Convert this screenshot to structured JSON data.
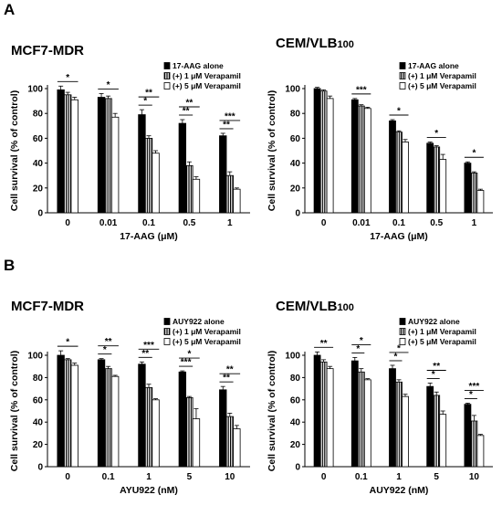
{
  "panels": [
    {
      "label": "A"
    },
    {
      "label": "B"
    }
  ],
  "colors": {
    "series": [
      "#000000",
      "hatched",
      "#ffffff"
    ]
  },
  "chart_data": [
    {
      "type": "bar",
      "title": "MCF7-MDR",
      "xlabel": "17-AAG (μM)",
      "ylabel": "Cell survival (% of control)",
      "ylim": [
        0,
        100
      ],
      "yticks": [
        "0",
        "20",
        "40",
        "60",
        "80",
        "100"
      ],
      "categories": [
        "0",
        "0.01",
        "0.1",
        "0.5",
        "1"
      ],
      "legend_position": "top-right",
      "series": [
        {
          "name": "17-AAG alone",
          "values": [
            99,
            93,
            79,
            72,
            62
          ],
          "errors": [
            3,
            3,
            4,
            3,
            2
          ]
        },
        {
          "name": "(+) 1 μM Verapamil",
          "values": [
            95,
            92,
            60,
            38,
            30
          ],
          "errors": [
            2,
            2,
            2,
            3,
            3
          ]
        },
        {
          "name": "(+) 5 μM Verapamil",
          "values": [
            91,
            77,
            48,
            27,
            19
          ],
          "errors": [
            2,
            3,
            2,
            2,
            1
          ]
        }
      ],
      "significance": [
        {
          "cat": 0,
          "pairs": [
            [
              0,
              2,
              "*"
            ]
          ]
        },
        {
          "cat": 1,
          "pairs": [
            [
              0,
              2,
              "*"
            ]
          ]
        },
        {
          "cat": 2,
          "pairs": [
            [
              0,
              2,
              "**"
            ],
            [
              0,
              1,
              "*"
            ]
          ]
        },
        {
          "cat": 3,
          "pairs": [
            [
              0,
              2,
              "**"
            ],
            [
              0,
              1,
              "**"
            ]
          ]
        },
        {
          "cat": 4,
          "pairs": [
            [
              0,
              2,
              "***"
            ],
            [
              0,
              1,
              "**"
            ]
          ]
        }
      ]
    },
    {
      "type": "bar",
      "title": "CEM/VLB",
      "title_sub": "100",
      "xlabel": "17-AAG (μM)",
      "ylabel": "Cell survival (% of control)",
      "ylim": [
        0,
        100
      ],
      "yticks": [
        "0",
        "20",
        "40",
        "60",
        "80",
        "100"
      ],
      "categories": [
        "0",
        "0.01",
        "0.1",
        "0.5",
        "1"
      ],
      "legend_position": "top-right",
      "series": [
        {
          "name": "17-AAG alone",
          "values": [
            100,
            91,
            74,
            56,
            40
          ],
          "errors": [
            1,
            1,
            1,
            1,
            1
          ]
        },
        {
          "name": "(+) 1 μM Verapamil",
          "values": [
            98,
            86,
            65,
            53,
            32
          ],
          "errors": [
            1,
            1,
            1,
            1,
            1
          ]
        },
        {
          "name": "(+) 5 μM Verapamil",
          "values": [
            92,
            84,
            57,
            43,
            18
          ],
          "errors": [
            2,
            1,
            2,
            4,
            1
          ]
        }
      ],
      "significance": [
        {
          "cat": 1,
          "pairs": [
            [
              0,
              2,
              "***"
            ]
          ]
        },
        {
          "cat": 2,
          "pairs": [
            [
              0,
              2,
              "*"
            ]
          ]
        },
        {
          "cat": 3,
          "pairs": [
            [
              0,
              2,
              "*"
            ]
          ]
        },
        {
          "cat": 4,
          "pairs": [
            [
              0,
              2,
              "*"
            ]
          ]
        }
      ]
    },
    {
      "type": "bar",
      "title": "MCF7-MDR",
      "xlabel": "AYU922 (nM)",
      "ylabel": "Cell survival (% of control)",
      "ylim": [
        0,
        100
      ],
      "yticks": [
        "0",
        "20",
        "40",
        "60",
        "80",
        "100"
      ],
      "categories": [
        "0",
        "0.1",
        "1",
        "5",
        "10"
      ],
      "legend_position": "top-right",
      "series": [
        {
          "name": "AUY922 alone",
          "values": [
            100,
            96,
            92,
            85,
            69
          ],
          "errors": [
            4,
            1,
            2,
            1,
            3
          ]
        },
        {
          "name": "(+) 1 μM Verapamil",
          "values": [
            96,
            88,
            71,
            62,
            45
          ],
          "errors": [
            1,
            2,
            3,
            1,
            3
          ]
        },
        {
          "name": "(+) 5 μM Verapamil",
          "values": [
            91,
            81,
            60,
            43,
            34
          ],
          "errors": [
            2,
            1,
            1,
            9,
            3
          ]
        }
      ],
      "significance": [
        {
          "cat": 0,
          "pairs": [
            [
              0,
              2,
              "*"
            ]
          ]
        },
        {
          "cat": 1,
          "pairs": [
            [
              0,
              2,
              "**"
            ],
            [
              0,
              1,
              "*"
            ]
          ]
        },
        {
          "cat": 2,
          "pairs": [
            [
              0,
              2,
              "***"
            ],
            [
              0,
              1,
              "**"
            ]
          ]
        },
        {
          "cat": 3,
          "pairs": [
            [
              0,
              2,
              "*"
            ],
            [
              0,
              1,
              "***"
            ]
          ]
        },
        {
          "cat": 4,
          "pairs": [
            [
              0,
              2,
              "**"
            ],
            [
              0,
              1,
              "**"
            ]
          ]
        }
      ]
    },
    {
      "type": "bar",
      "title": "CEM/VLB",
      "title_sub": "100",
      "xlabel": "AUY922 (nM)",
      "ylabel": "Cell survival (% of control)",
      "ylim": [
        0,
        100
      ],
      "yticks": [
        "0",
        "20",
        "40",
        "60",
        "80",
        "100"
      ],
      "categories": [
        "0",
        "0.1",
        "1",
        "5",
        "10"
      ],
      "legend_position": "top-right",
      "series": [
        {
          "name": "AUY922 alone",
          "values": [
            100,
            95,
            88,
            72,
            56
          ],
          "errors": [
            3,
            3,
            3,
            3,
            1
          ]
        },
        {
          "name": "(+) 1 μM Verapamil",
          "values": [
            94,
            85,
            76,
            64,
            41
          ],
          "errors": [
            2,
            3,
            2,
            3,
            5
          ]
        },
        {
          "name": "(+) 5 μM Verapamil",
          "values": [
            88,
            78,
            63,
            47,
            28
          ],
          "errors": [
            2,
            1,
            2,
            3,
            1
          ]
        }
      ],
      "significance": [
        {
          "cat": 0,
          "pairs": [
            [
              0,
              2,
              "**"
            ]
          ]
        },
        {
          "cat": 1,
          "pairs": [
            [
              0,
              2,
              "*"
            ],
            [
              0,
              1,
              "*"
            ]
          ]
        },
        {
          "cat": 2,
          "pairs": [
            [
              0,
              2,
              "*"
            ],
            [
              0,
              1,
              "*"
            ]
          ]
        },
        {
          "cat": 3,
          "pairs": [
            [
              0,
              2,
              "**"
            ],
            [
              0,
              1,
              "*"
            ]
          ]
        },
        {
          "cat": 4,
          "pairs": [
            [
              0,
              2,
              "***"
            ],
            [
              0,
              1,
              "*"
            ]
          ]
        }
      ]
    }
  ]
}
